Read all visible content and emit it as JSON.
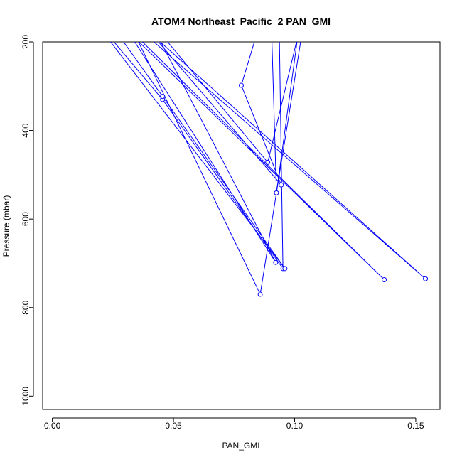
{
  "chart_data": {
    "type": "line",
    "title": "ATOM4 Northeast_Pacific_2 PAN_GMI",
    "xlabel": "PAN_GMI",
    "ylabel": "Pressure (mbar)",
    "xlim": [
      -0.004,
      0.16
    ],
    "ylim": [
      1030,
      200
    ],
    "y_reversed": true,
    "xticks": [
      0.0,
      0.05,
      0.1,
      0.15
    ],
    "xtick_labels": [
      "0.00",
      "0.05",
      "0.10",
      "0.15"
    ],
    "yticks": [
      200,
      400,
      600,
      800,
      1000
    ],
    "ytick_labels": [
      "200",
      "400",
      "600",
      "800",
      "1000"
    ],
    "grid": false,
    "series": [
      {
        "color": "#0000ff",
        "points": [
          {
            "x": 0.0935,
            "y": 110
          },
          {
            "x": 0.0952,
            "y": 712
          },
          {
            "x": 0.0455,
            "y": 330
          },
          {
            "x": 0.01,
            "y": 100
          },
          {
            "x": 0.096,
            "y": 712
          },
          {
            "x": 0.0455,
            "y": 323
          },
          {
            "x": 0.015,
            "y": 90
          },
          {
            "x": 0.137,
            "y": 737
          },
          {
            "x": 0.0,
            "y": 0
          },
          {
            "x": 0.154,
            "y": 735
          },
          {
            "x": 0.02,
            "y": 80
          },
          {
            "x": 0.0922,
            "y": 698
          },
          {
            "x": 0.04,
            "y": 150
          },
          {
            "x": 0.0889,
            "y": 472
          },
          {
            "x": 0.106,
            "y": 80
          },
          {
            "x": 0.0858,
            "y": 770
          },
          {
            "x": 0.025,
            "y": 80
          },
          {
            "x": 0.0945,
            "y": 523
          },
          {
            "x": 0.078,
            "y": 298
          },
          {
            "x": 0.09,
            "y": 80
          },
          {
            "x": 0.0925,
            "y": 541
          },
          {
            "x": 0.104,
            "y": 80
          }
        ]
      }
    ]
  }
}
